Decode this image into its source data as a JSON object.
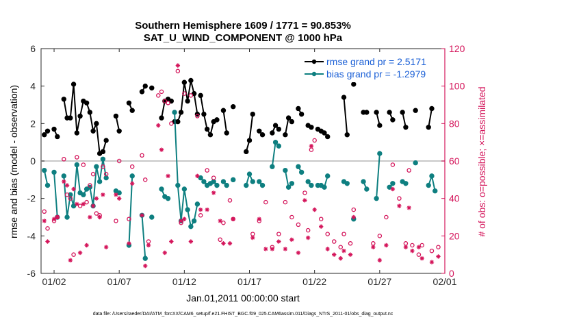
{
  "chart_data": {
    "type": "line",
    "title": "Southern Hemisphere 1609 / 1771 = 90.853%",
    "subtitle": "SAT_U_WIND_COMPONENT @ 1000 hPa",
    "xlabel": "Jan.01,2011 00:00:00 start",
    "ylabel": "rmse and bias (model - observation)",
    "y2label": "# of obs: o=possible; ×=assimilated",
    "footnote": "data file: /Users/raeder/DAI/ATM_forcXX/CAM6_setup/f.e21.FHIST_BGC.f09_025.CAM6assim.011/Diags_NTrS_2011-01/obs_diag_output.nc",
    "xlim": [
      0,
      31
    ],
    "ylim": [
      -6,
      6
    ],
    "y2lim": [
      0,
      120
    ],
    "grid": false,
    "legend_position": "top-right",
    "x_ticks": [
      1,
      6,
      11,
      16,
      21,
      26,
      31
    ],
    "x_tick_labels": [
      "01/02",
      "01/07",
      "01/12",
      "01/17",
      "01/22",
      "01/27",
      "02/01"
    ],
    "y_ticks": [
      -6,
      -4,
      -2,
      0,
      2,
      4,
      6
    ],
    "y2_ticks": [
      0,
      20,
      40,
      60,
      80,
      100,
      120
    ],
    "colors": {
      "rmse": "#000000",
      "bias": "#0e7f80",
      "obs": "#d4145a",
      "zero_line": "#c8c8c8",
      "legend_text": "#1a5fd6"
    },
    "series": [
      {
        "name": "rmse grand pr = 2.5171",
        "axis": "left",
        "segments": [
          [
            [
              0.25,
              1.4
            ],
            [
              0.5,
              1.6
            ]
          ],
          [
            [
              1.0,
              1.7
            ],
            [
              1.25,
              1.3
            ]
          ],
          [
            [
              1.75,
              3.3
            ],
            [
              2.0,
              2.3
            ],
            [
              2.25,
              2.3
            ],
            [
              2.5,
              4.1
            ],
            [
              2.75,
              1.5
            ],
            [
              3.0,
              2.4
            ],
            [
              3.25,
              3.2
            ],
            [
              3.5,
              3.1
            ],
            [
              3.75,
              2.6
            ],
            [
              4.0,
              1.6
            ],
            [
              4.25,
              2.0
            ],
            [
              4.5,
              0.4
            ],
            [
              4.75,
              0.5
            ],
            [
              5.0,
              1.1
            ]
          ],
          [
            [
              5.75,
              2.4
            ],
            [
              6.0,
              1.6
            ]
          ],
          [
            [
              6.75,
              3.1
            ],
            [
              7.0,
              2.7
            ]
          ],
          [
            [
              7.75,
              3.7
            ],
            [
              8.0,
              4.0
            ]
          ],
          [
            [
              8.5,
              3.9
            ]
          ],
          [
            [
              9.25,
              2.3
            ],
            [
              9.5,
              3.2
            ],
            [
              9.75,
              3.3
            ],
            [
              10.0,
              3.2
            ]
          ],
          [
            [
              10.25,
              2.1
            ],
            [
              10.5,
              2.1
            ],
            [
              10.75,
              2.6
            ],
            [
              11.0,
              4.2
            ],
            [
              11.25,
              3.2
            ],
            [
              11.5,
              4.3
            ],
            [
              11.75,
              3.6
            ],
            [
              12.0,
              2.5
            ]
          ],
          [
            [
              12.25,
              3.5
            ],
            [
              12.5,
              2.5
            ],
            [
              12.75,
              1.7
            ],
            [
              13.0,
              1.4
            ],
            [
              13.25,
              2.1
            ],
            [
              13.5,
              2.2
            ]
          ],
          [
            [
              14.0,
              2.7
            ],
            [
              14.25,
              1.5
            ]
          ],
          [
            [
              14.75,
              2.9
            ]
          ],
          [
            [
              15.75,
              0.5
            ],
            [
              16.0,
              1.1
            ],
            [
              16.25,
              2.5
            ]
          ],
          [
            [
              16.75,
              1.6
            ],
            [
              17.0,
              1.4
            ]
          ],
          [
            [
              17.75,
              1.5
            ],
            [
              18.0,
              1.9
            ],
            [
              18.25,
              1.7
            ]
          ],
          [
            [
              18.75,
              1.4
            ],
            [
              19.0,
              2.3
            ],
            [
              19.25,
              2.1
            ]
          ],
          [
            [
              19.75,
              2.8
            ],
            [
              20.0,
              2.5
            ]
          ],
          [
            [
              20.5,
              1.9
            ],
            [
              20.75,
              1.8
            ]
          ],
          [
            [
              21.25,
              1.7
            ],
            [
              21.5,
              1.6
            ],
            [
              21.75,
              1.5
            ],
            [
              22.0,
              1.3
            ]
          ],
          [
            [
              23.25,
              3.4
            ],
            [
              23.5,
              1.4
            ]
          ],
          [
            [
              24.0,
              4.1
            ]
          ],
          [
            [
              24.75,
              2.6
            ],
            [
              25.0,
              2.6
            ]
          ],
          [
            [
              25.75,
              2.6
            ],
            [
              26.0,
              1.9
            ]
          ],
          [
            [
              26.75,
              2.6
            ],
            [
              27.0,
              2.2
            ]
          ],
          [
            [
              27.75,
              2.6
            ],
            [
              28.0,
              1.8
            ]
          ],
          [
            [
              28.75,
              2.7
            ]
          ],
          [
            [
              29.75,
              1.8
            ],
            [
              30.0,
              2.8
            ]
          ]
        ]
      },
      {
        "name": "bias grand pr = -1.2979",
        "axis": "left",
        "segments": [
          [
            [
              0.25,
              -0.5
            ],
            [
              0.5,
              -1.3
            ]
          ],
          [
            [
              1.0,
              -0.6
            ],
            [
              1.25,
              -3.0
            ]
          ],
          [
            [
              1.75,
              -0.8
            ],
            [
              2.0,
              -3.0
            ],
            [
              2.25,
              -1.8
            ],
            [
              2.5,
              -2.4
            ],
            [
              2.75,
              -0.2
            ],
            [
              3.0,
              -1.7
            ],
            [
              3.25,
              -1.8
            ],
            [
              3.5,
              -1.5
            ],
            [
              3.75,
              -1.4
            ],
            [
              4.0,
              -2.4
            ],
            [
              4.25,
              -0.3
            ],
            [
              4.5,
              -1.1
            ],
            [
              4.75,
              0.1
            ],
            [
              5.0,
              -0.9
            ]
          ],
          [
            [
              5.75,
              -1.6
            ],
            [
              6.0,
              -1.7
            ]
          ],
          [
            [
              6.75,
              -4.5
            ],
            [
              7.0,
              -0.8
            ]
          ],
          [
            [
              7.75,
              -2.9
            ],
            [
              8.0,
              -5.2
            ]
          ],
          [
            [
              8.5,
              -3.0
            ]
          ],
          [
            [
              9.25,
              -1.5
            ],
            [
              9.5,
              -1.9
            ],
            [
              9.75,
              -2.0
            ]
          ],
          [
            [
              10.25,
              2.6
            ],
            [
              10.5,
              -1.3
            ],
            [
              10.75,
              -3.2
            ],
            [
              11.0,
              -1.5
            ],
            [
              11.25,
              -2.6
            ],
            [
              11.5,
              -3.5
            ],
            [
              11.75,
              -3.2
            ],
            [
              12.0,
              -2.3
            ]
          ],
          [
            [
              12.25,
              -0.9
            ],
            [
              12.5,
              -1.1
            ],
            [
              12.75,
              -1.3
            ],
            [
              13.0,
              -1.2
            ],
            [
              13.25,
              -1.1
            ],
            [
              13.5,
              -1.3
            ]
          ],
          [
            [
              14.0,
              -1.1
            ],
            [
              14.25,
              -1.3
            ]
          ],
          [
            [
              14.75,
              -1.0
            ]
          ],
          [
            [
              15.75,
              -1.3
            ],
            [
              16.0,
              -0.7
            ],
            [
              16.25,
              -1.1
            ]
          ],
          [
            [
              16.75,
              -1.1
            ],
            [
              17.0,
              -1.3
            ]
          ],
          [
            [
              17.75,
              -0.3
            ],
            [
              18.0,
              1.0
            ],
            [
              18.25,
              0.8
            ]
          ],
          [
            [
              18.75,
              -0.5
            ],
            [
              19.0,
              -1.4
            ],
            [
              19.25,
              -1.2
            ]
          ],
          [
            [
              19.75,
              -0.3
            ],
            [
              20.0,
              -0.6
            ]
          ],
          [
            [
              20.5,
              -1.1
            ],
            [
              20.75,
              -1.3
            ]
          ],
          [
            [
              21.25,
              -1.3
            ],
            [
              21.5,
              -1.3
            ],
            [
              21.75,
              -1.4
            ],
            [
              22.0,
              -0.8
            ]
          ],
          [
            [
              23.25,
              -1.1
            ],
            [
              23.5,
              -1.2
            ]
          ],
          [
            [
              24.0,
              -3.1
            ]
          ],
          [
            [
              24.75,
              -1.1
            ],
            [
              25.0,
              -1.5
            ]
          ],
          [
            [
              25.75,
              -2.0
            ],
            [
              26.0,
              0.4
            ]
          ],
          [
            [
              26.75,
              -1.4
            ],
            [
              27.0,
              -1.2
            ]
          ],
          [
            [
              27.75,
              -1.1
            ],
            [
              28.0,
              -1.2
            ]
          ],
          [
            [
              28.75,
              -0.1
            ]
          ],
          [
            [
              29.75,
              -1.3
            ],
            [
              30.0,
              -0.8
            ],
            [
              30.25,
              -1.6
            ]
          ]
        ]
      }
    ],
    "obs_possible": [
      [
        0.25,
        33
      ],
      [
        0.5,
        24
      ],
      [
        1.0,
        28
      ],
      [
        1.25,
        30
      ],
      [
        1.75,
        61
      ],
      [
        2.0,
        42
      ],
      [
        2.25,
        40
      ],
      [
        2.5,
        10
      ],
      [
        2.75,
        62
      ],
      [
        3.0,
        36
      ],
      [
        3.25,
        58
      ],
      [
        3.5,
        38
      ],
      [
        3.75,
        47
      ],
      [
        4.0,
        53
      ],
      [
        4.25,
        32
      ],
      [
        4.5,
        31
      ],
      [
        4.75,
        57
      ],
      [
        5.0,
        53
      ],
      [
        5.75,
        28
      ],
      [
        6.0,
        60
      ],
      [
        6.75,
        29
      ],
      [
        7.0,
        57
      ],
      [
        7.75,
        63
      ],
      [
        8.0,
        50
      ],
      [
        8.25,
        17
      ],
      [
        9.0,
        95
      ],
      [
        9.25,
        97
      ],
      [
        9.5,
        92
      ],
      [
        9.75,
        91
      ],
      [
        10.0,
        80
      ],
      [
        10.5,
        108
      ],
      [
        10.75,
        27
      ],
      [
        11.0,
        96
      ],
      [
        11.5,
        95
      ],
      [
        12.0,
        84
      ],
      [
        12.25,
        31
      ],
      [
        12.75,
        55
      ],
      [
        13.25,
        51
      ],
      [
        13.75,
        18
      ],
      [
        14.0,
        27
      ],
      [
        14.5,
        39
      ],
      [
        14.75,
        29
      ],
      [
        16.25,
        21
      ],
      [
        16.75,
        28
      ],
      [
        17.25,
        38
      ],
      [
        17.75,
        14
      ],
      [
        18.25,
        21
      ],
      [
        18.75,
        38
      ],
      [
        19.25,
        30
      ],
      [
        19.75,
        26
      ],
      [
        20.25,
        43
      ],
      [
        20.5,
        23
      ],
      [
        20.75,
        66
      ],
      [
        21.0,
        71
      ],
      [
        21.5,
        29
      ],
      [
        22.0,
        21
      ],
      [
        22.5,
        17
      ],
      [
        23.0,
        14
      ],
      [
        23.25,
        21
      ],
      [
        23.75,
        16
      ],
      [
        24.0,
        34
      ],
      [
        25.5,
        16
      ],
      [
        26.0,
        20
      ],
      [
        26.5,
        30
      ],
      [
        27.0,
        58
      ],
      [
        27.5,
        40
      ],
      [
        28.0,
        16
      ],
      [
        28.25,
        55
      ],
      [
        28.5,
        15
      ],
      [
        29.0,
        10
      ],
      [
        29.25,
        15
      ],
      [
        30.0,
        12
      ],
      [
        30.5,
        14
      ]
    ],
    "obs_assimilated": [
      [
        0.25,
        28
      ],
      [
        0.5,
        17
      ],
      [
        1.0,
        29
      ],
      [
        1.25,
        30
      ],
      [
        1.75,
        49
      ],
      [
        2.0,
        47
      ],
      [
        2.25,
        7
      ],
      [
        2.5,
        45
      ],
      [
        2.75,
        37
      ],
      [
        3.0,
        11
      ],
      [
        3.25,
        37
      ],
      [
        3.5,
        15
      ],
      [
        3.75,
        30
      ],
      [
        4.0,
        36
      ],
      [
        4.25,
        40
      ],
      [
        4.5,
        30
      ],
      [
        4.75,
        42
      ],
      [
        5.0,
        14
      ],
      [
        5.75,
        42
      ],
      [
        6.0,
        40
      ],
      [
        6.75,
        16
      ],
      [
        7.0,
        48
      ],
      [
        7.75,
        31
      ],
      [
        8.0,
        4
      ],
      [
        8.25,
        15
      ],
      [
        9.0,
        79
      ],
      [
        9.25,
        66
      ],
      [
        9.5,
        11
      ],
      [
        9.75,
        52
      ],
      [
        10.0,
        17
      ],
      [
        10.5,
        111
      ],
      [
        10.75,
        28
      ],
      [
        11.0,
        29
      ],
      [
        11.5,
        17
      ],
      [
        12.0,
        52
      ],
      [
        12.25,
        34
      ],
      [
        12.75,
        34
      ],
      [
        13.25,
        43
      ],
      [
        13.75,
        28
      ],
      [
        14.0,
        16
      ],
      [
        14.5,
        16
      ],
      [
        14.75,
        29
      ],
      [
        16.25,
        19
      ],
      [
        16.75,
        29
      ],
      [
        17.25,
        13
      ],
      [
        17.75,
        13
      ],
      [
        18.25,
        17
      ],
      [
        18.75,
        13
      ],
      [
        19.25,
        18
      ],
      [
        19.75,
        11
      ],
      [
        20.25,
        39
      ],
      [
        20.5,
        19
      ],
      [
        20.75,
        68
      ],
      [
        21.0,
        34
      ],
      [
        21.5,
        25
      ],
      [
        22.0,
        13
      ],
      [
        22.5,
        10
      ],
      [
        23.0,
        8
      ],
      [
        23.25,
        12
      ],
      [
        23.75,
        10
      ],
      [
        24.0,
        30
      ],
      [
        25.5,
        14
      ],
      [
        26.0,
        7
      ],
      [
        26.5,
        15
      ],
      [
        27.0,
        45
      ],
      [
        27.5,
        36
      ],
      [
        28.0,
        14
      ],
      [
        28.25,
        35
      ],
      [
        28.5,
        12
      ],
      [
        29.0,
        14
      ],
      [
        29.25,
        8
      ],
      [
        30.0,
        6
      ],
      [
        30.5,
        9
      ]
    ]
  }
}
